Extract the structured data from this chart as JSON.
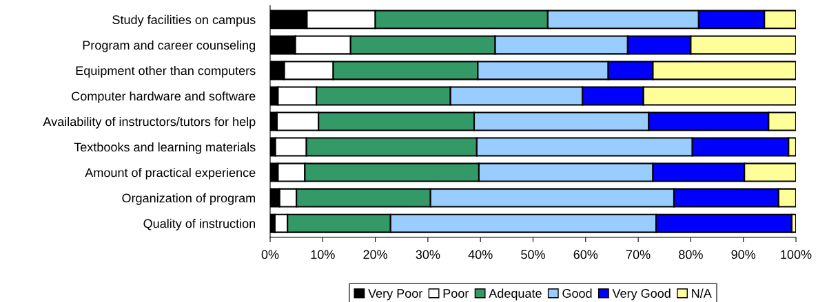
{
  "chart_data": {
    "type": "bar",
    "orientation": "horizontal",
    "stacked": true,
    "categories": [
      "Study facilities on campus",
      "Program and career counseling",
      "Equipment other than computers",
      "Computer hardware and software",
      "Availability of instructors/tutors for help",
      "Textbooks and learning materials",
      "Amount of practical experience",
      "Organization of program",
      "Quality of instruction"
    ],
    "series": [
      {
        "name": "Very Poor",
        "color": "#000000",
        "values": [
          7,
          4.8,
          2.7,
          1.5,
          1.3,
          1,
          1.5,
          1.8,
          0.9
        ]
      },
      {
        "name": "Poor",
        "color": "#ffffff",
        "values": [
          13,
          10.5,
          9.3,
          7.3,
          7.9,
          5.9,
          5.1,
          3.2,
          2.4
        ]
      },
      {
        "name": "Adequate",
        "color": "#339966",
        "values": [
          32.8,
          27.5,
          27.5,
          25.5,
          29.6,
          32.4,
          33.1,
          25.5,
          19.6
        ]
      },
      {
        "name": "Good",
        "color": "#99ccff",
        "values": [
          28.7,
          25.2,
          24.8,
          25.1,
          33.2,
          41,
          33.1,
          46.3,
          50.5
        ]
      },
      {
        "name": "Very Good",
        "color": "#0000ff",
        "values": [
          12.5,
          12,
          8.5,
          11.6,
          22.8,
          18.3,
          17.4,
          19.9,
          25.8
        ]
      },
      {
        "name": "N/A",
        "color": "#ffff99",
        "values": [
          6,
          20,
          27.2,
          29,
          5.2,
          1.4,
          9.8,
          3.3,
          0.8
        ]
      }
    ],
    "xlim": [
      0,
      100
    ],
    "xticks": [
      {
        "value": 0,
        "label": "0%"
      },
      {
        "value": 10,
        "label": "10%"
      },
      {
        "value": 20,
        "label": "20%"
      },
      {
        "value": 30,
        "label": "30%"
      },
      {
        "value": 40,
        "label": "40%"
      },
      {
        "value": 50,
        "label": "50%"
      },
      {
        "value": 60,
        "label": "60%"
      },
      {
        "value": 70,
        "label": "70%"
      },
      {
        "value": 80,
        "label": "80%"
      },
      {
        "value": 90,
        "label": "90%"
      },
      {
        "value": 100,
        "label": "100%"
      }
    ],
    "grid": false,
    "legend": "bottom"
  }
}
